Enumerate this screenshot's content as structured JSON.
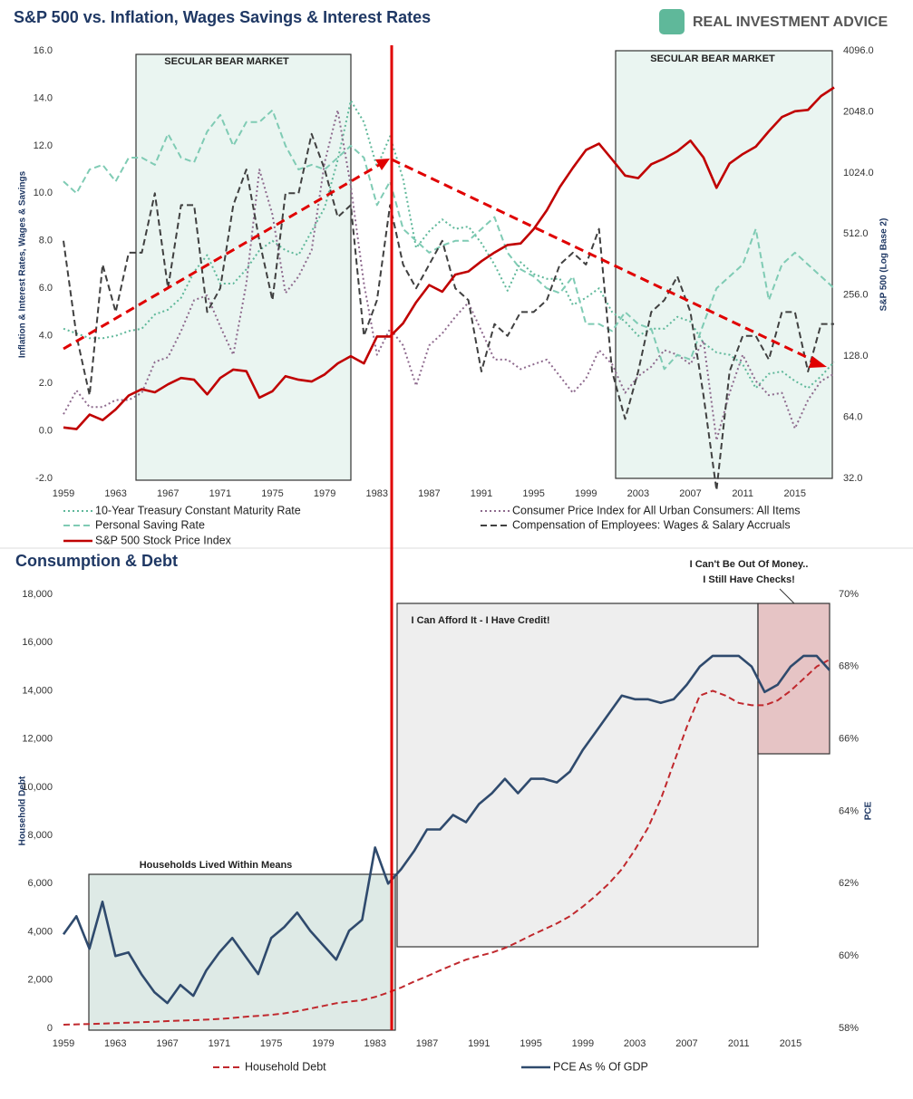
{
  "logo": "REAL INVESTMENT ADVICE",
  "chart_data": [
    {
      "type": "line",
      "title": "S&P 500 vs. Inflation, Wages Savings & Interest Rates",
      "ylabel": "Inflation & Interest Rates, Wages & Savings",
      "y2label": "S&P 500 (Log Base 2)",
      "annotations": [
        "SECULAR BEAR MARKET",
        "SECULAR BEAR MARKET"
      ],
      "x": [
        1959,
        1960,
        1961,
        1962,
        1963,
        1964,
        1965,
        1966,
        1967,
        1968,
        1969,
        1970,
        1971,
        1972,
        1973,
        1974,
        1975,
        1976,
        1977,
        1978,
        1979,
        1980,
        1981,
        1982,
        1983,
        1984,
        1985,
        1986,
        1987,
        1988,
        1989,
        1990,
        1991,
        1992,
        1993,
        1994,
        1995,
        1996,
        1997,
        1998,
        1999,
        2000,
        2001,
        2002,
        2003,
        2004,
        2005,
        2006,
        2007,
        2008,
        2009,
        2010,
        2011,
        2012,
        2013,
        2014,
        2015,
        2016,
        2017,
        2018
      ],
      "xlim": [
        1959,
        2018
      ],
      "xticks": [
        1959,
        1963,
        1967,
        1971,
        1975,
        1979,
        1983,
        1987,
        1991,
        1995,
        1999,
        2003,
        2007,
        2011,
        2015
      ],
      "ylim": [
        -2,
        16
      ],
      "yticks": [
        {
          "value": -2,
          "label": "-2.0"
        },
        {
          "value": 0,
          "label": "0.0"
        },
        {
          "value": 2,
          "label": "2.0"
        },
        {
          "value": 4,
          "label": "4.0"
        },
        {
          "value": 6,
          "label": "6.0"
        },
        {
          "value": 8,
          "label": "8.0"
        },
        {
          "value": 10,
          "label": "10.0"
        },
        {
          "value": 12,
          "label": "12.0"
        },
        {
          "value": 14,
          "label": "14.0"
        },
        {
          "value": 16,
          "label": "16.0"
        }
      ],
      "y2lim": [
        32,
        4096
      ],
      "y2log_base": 2,
      "y2ticks": [
        {
          "value": 32,
          "label": "32.0"
        },
        {
          "value": 64,
          "label": "64.0"
        },
        {
          "value": 128,
          "label": "128.0"
        },
        {
          "value": 256,
          "label": "256.0"
        },
        {
          "value": 512,
          "label": "512.0"
        },
        {
          "value": 1024,
          "label": "1024.0"
        },
        {
          "value": 2048,
          "label": "2048.0"
        },
        {
          "value": 4096,
          "label": "4096.0"
        }
      ],
      "series": [
        {
          "name": "10-Year Treasury Constant Maturity Rate",
          "color": "#5fb89a",
          "style": "dotted",
          "values": [
            4.3,
            4.1,
            3.9,
            3.9,
            4.0,
            4.2,
            4.3,
            4.9,
            5.1,
            5.6,
            6.7,
            7.4,
            6.2,
            6.2,
            6.8,
            7.6,
            8.0,
            7.6,
            7.4,
            8.4,
            9.4,
            11.4,
            13.9,
            13.0,
            11.1,
            12.4,
            10.6,
            7.7,
            8.4,
            8.9,
            8.5,
            8.6,
            7.9,
            7.0,
            5.9,
            7.1,
            6.6,
            6.4,
            6.4,
            5.3,
            5.6,
            6.0,
            5.0,
            4.6,
            4.0,
            4.3,
            4.3,
            4.8,
            4.6,
            3.7,
            3.3,
            3.2,
            2.8,
            1.8,
            2.4,
            2.5,
            2.1,
            1.8,
            2.3,
            2.9
          ]
        },
        {
          "name": "Consumer Price Index for All Urban Consumers: All Items",
          "color": "#8e6a8e",
          "style": "dotted",
          "values": [
            0.7,
            1.7,
            1.0,
            1.0,
            1.3,
            1.3,
            1.6,
            2.9,
            3.1,
            4.2,
            5.5,
            5.7,
            4.4,
            3.2,
            6.2,
            11.0,
            9.1,
            5.8,
            6.5,
            7.6,
            11.3,
            13.5,
            10.3,
            6.2,
            3.2,
            4.3,
            3.6,
            1.9,
            3.6,
            4.1,
            4.8,
            5.4,
            4.2,
            3.0,
            3.0,
            2.6,
            2.8,
            3.0,
            2.3,
            1.6,
            2.2,
            3.4,
            2.8,
            1.6,
            2.3,
            2.7,
            3.4,
            3.2,
            2.8,
            3.8,
            -0.4,
            1.6,
            3.2,
            2.1,
            1.5,
            1.6,
            0.1,
            1.3,
            2.1,
            2.4
          ]
        },
        {
          "name": "Personal Saving Rate",
          "color": "#7fcbb4",
          "style": "dashed",
          "values": [
            10.5,
            10.0,
            11.0,
            11.2,
            10.5,
            11.5,
            11.5,
            11.2,
            12.5,
            11.5,
            11.3,
            12.6,
            13.3,
            12.0,
            13.0,
            13.0,
            13.5,
            12.0,
            11.0,
            11.2,
            11.0,
            11.5,
            12.0,
            11.5,
            9.5,
            10.5,
            8.5,
            8.0,
            7.5,
            7.8,
            8.0,
            8.0,
            8.5,
            9.0,
            7.5,
            6.8,
            6.5,
            6.0,
            5.8,
            6.5,
            4.5,
            4.5,
            4.2,
            5.0,
            4.5,
            4.3,
            2.6,
            3.2,
            3.0,
            4.5,
            6.0,
            6.5,
            7.0,
            8.5,
            5.5,
            7.0,
            7.5,
            7.0,
            6.5,
            6.0
          ]
        },
        {
          "name": "Compensation of Employees: Wages & Salary Accruals",
          "color": "#404040",
          "style": "dashed",
          "values": [
            8,
            4,
            1.5,
            7,
            5,
            7.5,
            7.5,
            10,
            6,
            9.5,
            9.5,
            5,
            6,
            9.5,
            11,
            8,
            5.5,
            10,
            10,
            12.5,
            11,
            9,
            9.5,
            4,
            5.5,
            9.5,
            7,
            6,
            7,
            8,
            6,
            5.5,
            2.5,
            4.5,
            4,
            5,
            5,
            5.5,
            7,
            7.5,
            7,
            8.5,
            2.5,
            0.5,
            2.5,
            5,
            5.5,
            6.5,
            5,
            1.5,
            -2.5,
            2.5,
            4,
            4,
            3,
            5,
            5,
            2.5,
            4.5,
            4.5
          ]
        },
        {
          "name": "S&P 500 Stock Price Index",
          "color": "#c00000",
          "style": "solid",
          "axis": "y2",
          "values": [
            57,
            56,
            66,
            62,
            70,
            82,
            88,
            85,
            93,
            100,
            98,
            83,
            100,
            110,
            108,
            80,
            86,
            102,
            98,
            96,
            104,
            118,
            128,
            118,
            160,
            160,
            186,
            236,
            287,
            266,
            323,
            335,
            376,
            415,
            452,
            460,
            541,
            670,
            873,
            1085,
            1327,
            1427,
            1194,
            993,
            965,
            1130,
            1207,
            1310,
            1477,
            1220,
            865,
            1140,
            1268,
            1379,
            1643,
            1931,
            2061,
            2094,
            2449,
            2700
          ]
        }
      ]
    },
    {
      "type": "line",
      "title": "Consumption & Debt",
      "ylabel": "Household Debt",
      "y2label": "PCE",
      "annotations": [
        "Households Lived Within Means",
        "I Can Afford It - I Have Credit!",
        "I Can't Be Out Of Money..",
        "I Still Have Checks!"
      ],
      "x": [
        1959,
        1960,
        1961,
        1962,
        1963,
        1964,
        1965,
        1966,
        1967,
        1968,
        1969,
        1970,
        1971,
        1972,
        1973,
        1974,
        1975,
        1976,
        1977,
        1978,
        1979,
        1980,
        1981,
        1982,
        1983,
        1984,
        1985,
        1986,
        1987,
        1988,
        1989,
        1990,
        1991,
        1992,
        1993,
        1994,
        1995,
        1996,
        1997,
        1998,
        1999,
        2000,
        2001,
        2002,
        2003,
        2004,
        2005,
        2006,
        2007,
        2008,
        2009,
        2010,
        2011,
        2012,
        2013,
        2014,
        2015,
        2016,
        2017,
        2018
      ],
      "xlim": [
        1959,
        2018
      ],
      "xticks": [
        1959,
        1963,
        1967,
        1971,
        1975,
        1979,
        1983,
        1987,
        1991,
        1995,
        1999,
        2003,
        2007,
        2011,
        2015
      ],
      "ylim": [
        0,
        18000
      ],
      "yticks": [
        0,
        {
          "value": 2000,
          "label": "2,000"
        },
        {
          "value": 4000,
          "label": "4,000"
        },
        {
          "value": 6000,
          "label": "6,000"
        },
        {
          "value": 8000,
          "label": "8,000"
        },
        {
          "value": 10000,
          "label": "10,000"
        },
        {
          "value": 12000,
          "label": "12,000"
        },
        {
          "value": 14000,
          "label": "14,000"
        },
        {
          "value": 16000,
          "label": "16,000"
        },
        {
          "value": 18000,
          "label": "18,000"
        }
      ],
      "y2lim": [
        58,
        70
      ],
      "y2ticks": [
        {
          "value": 58,
          "label": "58%"
        },
        {
          "value": 60,
          "label": "60%"
        },
        {
          "value": 62,
          "label": "62%"
        },
        {
          "value": 64,
          "label": "64%"
        },
        {
          "value": 66,
          "label": "66%"
        },
        {
          "value": 68,
          "label": "68%"
        },
        {
          "value": 70,
          "label": "70%"
        }
      ],
      "series": [
        {
          "name": "Household Debt",
          "color": "#c0282d",
          "style": "dashed",
          "values": [
            150,
            165,
            180,
            195,
            215,
            235,
            255,
            275,
            300,
            320,
            340,
            360,
            390,
            430,
            480,
            520,
            560,
            620,
            710,
            820,
            930,
            1040,
            1110,
            1170,
            1300,
            1480,
            1690,
            1940,
            2160,
            2400,
            2630,
            2850,
            3000,
            3140,
            3330,
            3580,
            3850,
            4100,
            4350,
            4650,
            5050,
            5500,
            6000,
            6600,
            7400,
            8300,
            9500,
            11000,
            12500,
            13800,
            14000,
            13800,
            13500,
            13400,
            13400,
            13600,
            14000,
            14500,
            15000,
            15300
          ]
        },
        {
          "name": "PCE As % Of GDP",
          "color": "#2f4a6d",
          "style": "solid",
          "axis": "y2",
          "values": [
            60.6,
            61.1,
            60.2,
            61.5,
            60.0,
            60.1,
            59.5,
            59.0,
            58.7,
            59.2,
            58.9,
            59.6,
            60.1,
            60.5,
            60.0,
            59.5,
            60.5,
            60.8,
            61.2,
            60.7,
            60.3,
            59.9,
            60.7,
            61.0,
            63.0,
            62.0,
            62.4,
            62.9,
            63.5,
            63.5,
            63.9,
            63.7,
            64.2,
            64.5,
            64.9,
            64.5,
            64.9,
            64.9,
            64.8,
            65.1,
            65.7,
            66.2,
            66.7,
            67.2,
            67.1,
            67.1,
            67.0,
            67.1,
            67.5,
            68.0,
            68.3,
            68.3,
            68.3,
            68.0,
            67.3,
            67.5,
            68.0,
            68.3,
            68.3,
            67.9
          ]
        }
      ]
    }
  ]
}
